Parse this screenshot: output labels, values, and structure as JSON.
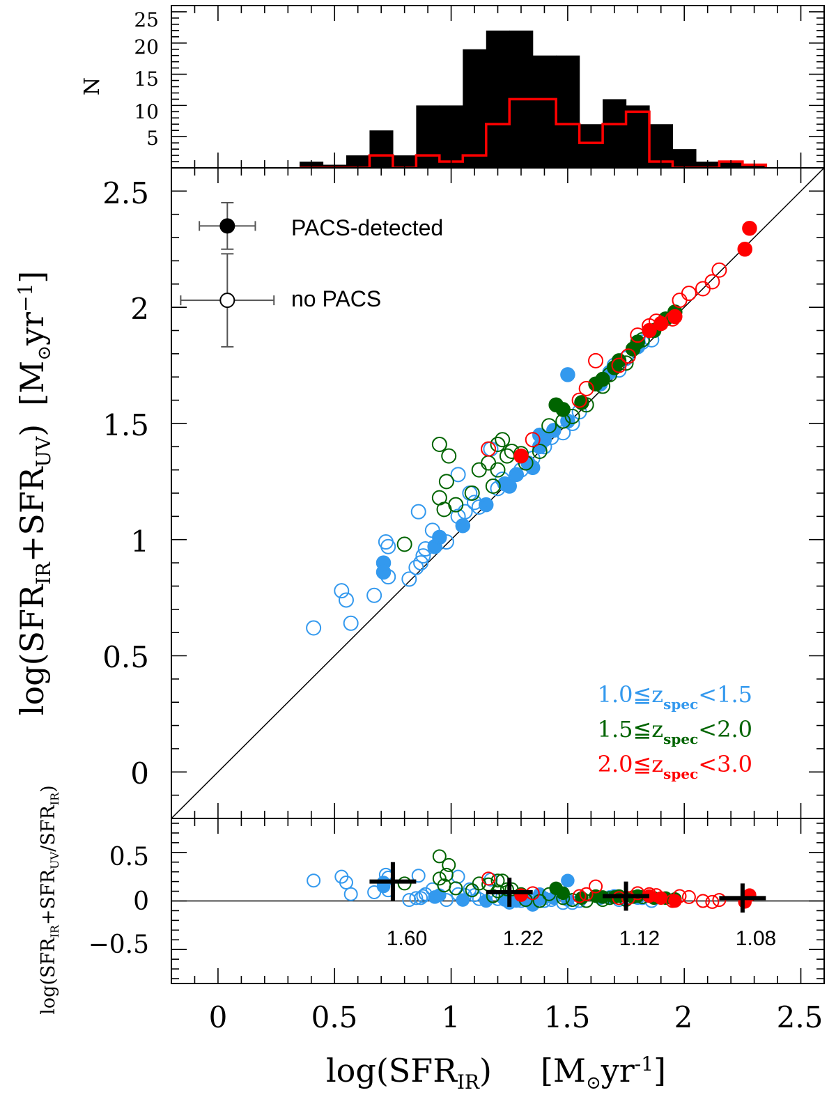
{
  "chart_data": [
    {
      "panel": "histogram",
      "type": "bar",
      "ylabel": "N",
      "yticks": [
        "5",
        "10",
        "15",
        "20",
        "25"
      ],
      "ylim": [
        0,
        26
      ],
      "xlim": [
        -0.2,
        2.6
      ],
      "bin_edges": [
        0.35,
        0.45,
        0.55,
        0.65,
        0.75,
        0.85,
        0.95,
        1.05,
        1.15,
        1.25,
        1.35,
        1.45,
        1.55,
        1.65,
        1.75,
        1.85,
        1.95,
        2.05,
        2.15,
        2.25,
        2.35
      ],
      "series": [
        {
          "name": "",
          "color": "#000000",
          "style": "filled",
          "values": [
            1,
            0.5,
            2,
            6,
            2,
            10,
            10,
            19,
            22,
            22,
            18,
            18,
            7,
            11,
            10,
            7,
            3,
            1,
            1,
            0.5
          ]
        },
        {
          "name": "",
          "color": "#ff0000",
          "style": "step",
          "values": [
            0,
            0,
            0,
            2,
            0,
            2,
            1,
            2,
            7,
            11,
            11,
            7,
            4,
            7,
            9,
            1,
            0,
            0,
            1,
            0.5
          ]
        }
      ]
    },
    {
      "panel": "main",
      "type": "scatter",
      "xlim": [
        -0.2,
        2.6
      ],
      "ylim": [
        -0.2,
        2.6
      ],
      "yticks": [
        "0",
        "0.5",
        "1",
        "1.5",
        "2",
        "2.5"
      ],
      "ylabel": {
        "main": "log(SFR",
        "sub1": "IR",
        "mid": "+SFR",
        "sub2": "UV",
        "close": ")",
        "unit_open": "[M",
        "sun": "⊙",
        "unit_yr": "yr",
        "sup": "−1",
        "unit_close": "]"
      },
      "one_to_one_line": true,
      "legend": {
        "detected": "PACS-detected",
        "not_detected": "no PACS",
        "detected_err": [
          0.12,
          0.1
        ],
        "not_detected_err": [
          0.2,
          0.2
        ],
        "detected_pos": [
          0.04,
          2.35
        ],
        "not_detected_pos": [
          0.04,
          2.03
        ]
      },
      "color_legend": [
        {
          "prefix": "1.0≦z",
          "sub": "spec",
          "suffix": "<1.5",
          "color": "#3399ee"
        },
        {
          "prefix": "1.5≦z",
          "sub": "spec",
          "suffix": "<2.0",
          "color": "#006400"
        },
        {
          "prefix": "2.0≦z",
          "sub": "spec",
          "suffix": "<3.0",
          "color": "#ff0000"
        }
      ],
      "series": [
        {
          "name": "1.0≦zspec<1.5 (PACS)",
          "color": "#3399ee",
          "filled": true,
          "points": [
            [
              0.71,
              0.9
            ],
            [
              0.71,
              0.86
            ],
            [
              0.93,
              0.97
            ],
            [
              0.95,
              1.01
            ],
            [
              1.05,
              1.06
            ],
            [
              1.15,
              1.15
            ],
            [
              1.23,
              1.24
            ],
            [
              1.25,
              1.23
            ],
            [
              1.28,
              1.28
            ],
            [
              1.33,
              1.33
            ],
            [
              1.35,
              1.31
            ],
            [
              1.38,
              1.4
            ],
            [
              1.4,
              1.43
            ],
            [
              1.38,
              1.45
            ],
            [
              1.44,
              1.47
            ],
            [
              1.5,
              1.71
            ],
            [
              1.5,
              1.51
            ],
            [
              1.64,
              1.67
            ],
            [
              1.68,
              1.72
            ],
            [
              1.8,
              1.83
            ]
          ]
        },
        {
          "name": "1.0≦zspec<1.5 (no PACS)",
          "color": "#3399ee",
          "filled": false,
          "points": [
            [
              0.41,
              0.62
            ],
            [
              0.53,
              0.78
            ],
            [
              0.55,
              0.74
            ],
            [
              0.57,
              0.64
            ],
            [
              0.67,
              0.76
            ],
            [
              0.72,
              0.99
            ],
            [
              0.73,
              0.97
            ],
            [
              0.73,
              0.84
            ],
            [
              0.82,
              0.83
            ],
            [
              0.85,
              0.88
            ],
            [
              0.87,
              0.9
            ],
            [
              0.88,
              0.93
            ],
            [
              0.89,
              0.96
            ],
            [
              0.86,
              1.12
            ],
            [
              0.92,
              1.04
            ],
            [
              0.98,
              0.99
            ],
            [
              1.03,
              1.1
            ],
            [
              1.03,
              1.28
            ],
            [
              1.06,
              1.12
            ],
            [
              1.1,
              1.16
            ],
            [
              1.12,
              1.14
            ],
            [
              1.08,
              1.2
            ],
            [
              1.17,
              1.39
            ],
            [
              1.2,
              1.22
            ],
            [
              1.22,
              1.26
            ],
            [
              1.3,
              1.3
            ],
            [
              1.35,
              1.35
            ],
            [
              1.4,
              1.4
            ],
            [
              1.43,
              1.44
            ],
            [
              1.48,
              1.46
            ],
            [
              1.52,
              1.5
            ],
            [
              1.55,
              1.55
            ],
            [
              1.7,
              1.75
            ],
            [
              1.72,
              1.73
            ],
            [
              1.75,
              1.78
            ],
            [
              1.82,
              1.85
            ],
            [
              1.86,
              1.86
            ]
          ]
        },
        {
          "name": "1.5≦zspec<2.0 (PACS)",
          "color": "#006400",
          "filled": true,
          "points": [
            [
              1.45,
              1.58
            ],
            [
              1.48,
              1.56
            ],
            [
              1.56,
              1.59
            ],
            [
              1.62,
              1.67
            ],
            [
              1.65,
              1.69
            ],
            [
              1.7,
              1.74
            ],
            [
              1.72,
              1.77
            ],
            [
              1.78,
              1.82
            ],
            [
              1.8,
              1.85
            ],
            [
              1.87,
              1.9
            ],
            [
              1.92,
              1.95
            ],
            [
              1.96,
              1.98
            ]
          ]
        },
        {
          "name": "1.5≦zspec<2.0 (no PACS)",
          "color": "#006400",
          "filled": false,
          "points": [
            [
              0.95,
              1.41
            ],
            [
              0.98,
              1.25
            ],
            [
              0.99,
              1.36
            ],
            [
              0.95,
              1.18
            ],
            [
              0.8,
              0.98
            ],
            [
              0.97,
              1.13
            ],
            [
              1.02,
              1.15
            ],
            [
              1.09,
              1.2
            ],
            [
              1.12,
              1.3
            ],
            [
              1.16,
              1.33
            ],
            [
              1.18,
              1.23
            ],
            [
              1.2,
              1.41
            ],
            [
              1.22,
              1.43
            ],
            [
              1.24,
              1.36
            ],
            [
              1.2,
              1.3
            ],
            [
              1.26,
              1.38
            ],
            [
              1.3,
              1.37
            ],
            [
              1.32,
              1.33
            ],
            [
              1.38,
              1.38
            ],
            [
              1.42,
              1.49
            ],
            [
              1.48,
              1.51
            ],
            [
              1.52,
              1.53
            ],
            [
              1.58,
              1.58
            ],
            [
              1.65,
              1.66
            ],
            [
              1.68,
              1.71
            ],
            [
              1.75,
              1.76
            ],
            [
              1.82,
              1.86
            ]
          ]
        },
        {
          "name": "2.0≦zspec<3.0 (PACS)",
          "color": "#ff0000",
          "filled": true,
          "points": [
            [
              1.3,
              1.36
            ],
            [
              1.85,
              1.9
            ],
            [
              1.9,
              1.93
            ],
            [
              1.96,
              1.96
            ],
            [
              2.26,
              2.25
            ],
            [
              2.28,
              2.34
            ]
          ]
        },
        {
          "name": "2.0≦zspec<3.0 (no PACS)",
          "color": "#ff0000",
          "filled": false,
          "points": [
            [
              1.16,
              1.39
            ],
            [
              1.35,
              1.43
            ],
            [
              1.55,
              1.6
            ],
            [
              1.58,
              1.65
            ],
            [
              1.62,
              1.77
            ],
            [
              1.72,
              1.75
            ],
            [
              1.76,
              1.79
            ],
            [
              1.8,
              1.88
            ],
            [
              1.85,
              1.92
            ],
            [
              1.88,
              1.94
            ],
            [
              1.95,
              1.95
            ],
            [
              1.98,
              2.03
            ],
            [
              2.02,
              2.06
            ],
            [
              2.08,
              2.08
            ],
            [
              2.12,
              2.11
            ],
            [
              2.15,
              2.16
            ]
          ]
        }
      ]
    },
    {
      "panel": "residual",
      "type": "scatter",
      "xlim": [
        -0.2,
        2.6
      ],
      "ylim": [
        -0.85,
        0.85
      ],
      "xticks": [
        "0",
        "0.5",
        "1",
        "1.5",
        "2",
        "2.5"
      ],
      "yticks": [
        "0.5",
        "0",
        "−0.5"
      ],
      "xlabel": {
        "main": "log(SFR",
        "sub": "IR",
        "close": ")",
        "unit_open": "[M",
        "sun": "⊙",
        "unit_yr": "yr",
        "sup": "-1",
        "unit_close": "]"
      },
      "ylabel": {
        "a": "log(SFR",
        "s1": "IR",
        "b": "+SFR",
        "s2": "UV",
        "c": "/SFR",
        "s3": "IR",
        "d": ")"
      },
      "zero_line": true,
      "bin_markers": [
        {
          "x": 0.75,
          "y": 0.2,
          "xerr": 0.1,
          "yerr": 0.2,
          "label": "1.60"
        },
        {
          "x": 1.25,
          "y": 0.09,
          "xerr": 0.1,
          "yerr": 0.15,
          "label": "1.22"
        },
        {
          "x": 1.75,
          "y": 0.05,
          "xerr": 0.1,
          "yerr": 0.15,
          "label": "1.12"
        },
        {
          "x": 2.25,
          "y": 0.03,
          "xerr": 0.1,
          "yerr": 0.15,
          "label": "1.08"
        }
      ]
    }
  ]
}
